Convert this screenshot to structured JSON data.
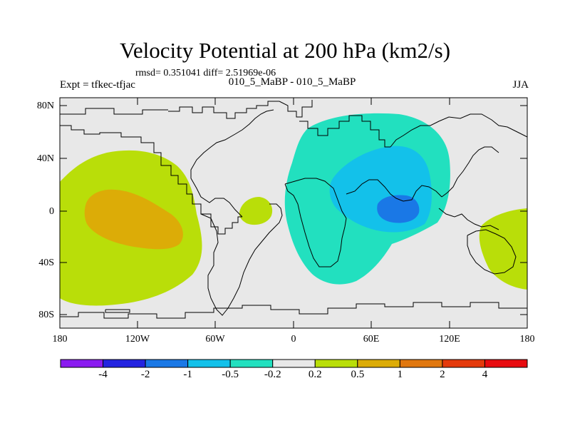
{
  "map": {
    "title": "Velocity Potential at 200 hPa (km2/s)",
    "stats": "rmsd= 0.351041 diff= 2.51969e-06",
    "experiment": "Expt = tfkec-tfjac",
    "case": "010_5_MaBP - 010_5_MaBP",
    "season": "JJA",
    "lat_ticks": [
      "80N",
      "40N",
      "0",
      "40S",
      "80S"
    ],
    "lon_ticks": [
      "180",
      "120W",
      "60W",
      "0",
      "60E",
      "120E",
      "180"
    ],
    "background_color": "#e8e8e8",
    "coastline_color": "#000000"
  },
  "contour_levels": {
    "levels": [
      "-4",
      "-2",
      "-1",
      "-0.5",
      "-0.2",
      "0.2",
      "0.5",
      "1",
      "2",
      "4"
    ],
    "colors": [
      "#8a1bf0",
      "#2323e0",
      "#1a78e6",
      "#13c1ea",
      "#22e0bf",
      "#e8e8e8",
      "#b9de09",
      "#dcac07",
      "#e0770f",
      "#e43a0c",
      "#e80c10"
    ]
  }
}
